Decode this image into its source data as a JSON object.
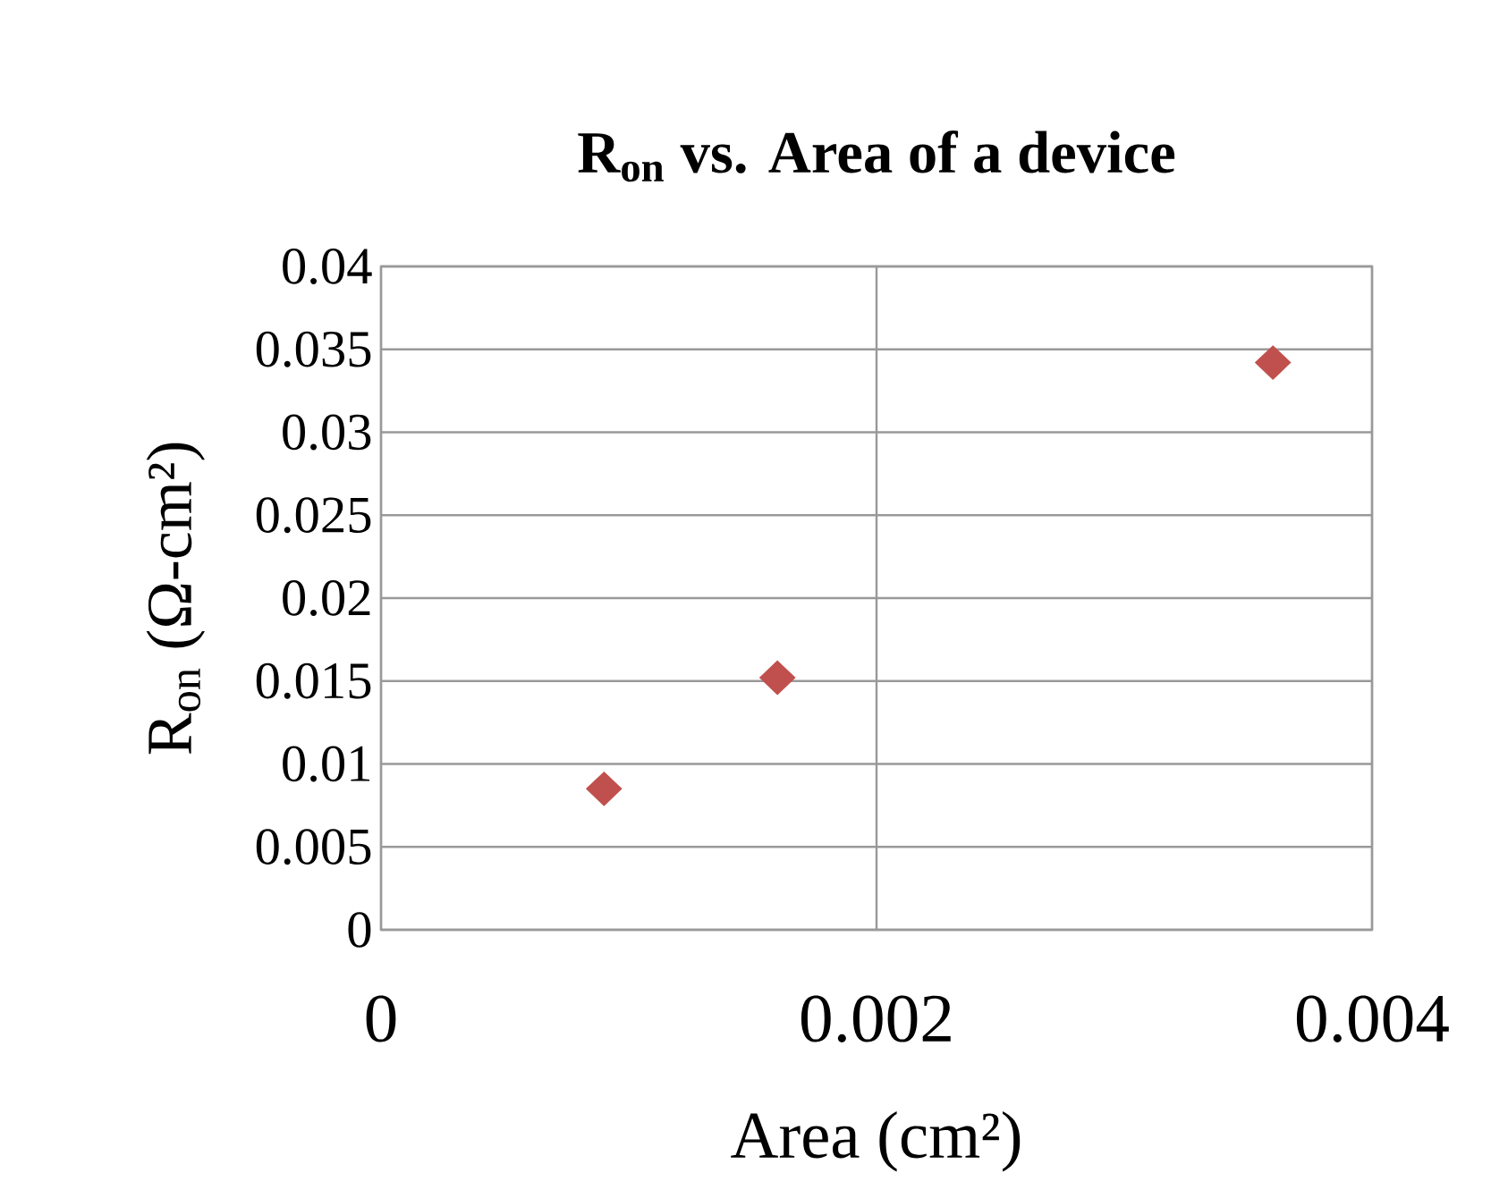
{
  "chart_data": {
    "type": "scatter",
    "title": "R$_{on}$ vs. Area of a device",
    "xlabel": "Area (cm²)",
    "ylabel": "R$_{on}$ (Ω-cm²)",
    "x": [
      0.0009,
      0.0016,
      0.0036
    ],
    "values": [
      0.0085,
      0.0152,
      0.0342
    ],
    "color": "#c0504d",
    "marker": "diamond",
    "xlim": [
      0,
      0.004
    ],
    "xticks": [
      0,
      0.002,
      0.004
    ],
    "ylim": [
      0,
      0.04
    ],
    "yticks": [
      0,
      0.005,
      0.01,
      0.015,
      0.02,
      0.025,
      0.03,
      0.035,
      0.04
    ],
    "grid": true
  }
}
